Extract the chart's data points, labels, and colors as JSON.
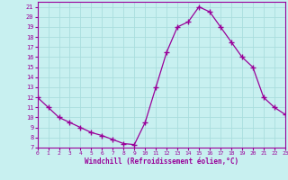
{
  "hours": [
    0,
    1,
    2,
    3,
    4,
    5,
    6,
    7,
    8,
    9,
    10,
    11,
    12,
    13,
    14,
    15,
    16,
    17,
    18,
    19,
    20,
    21,
    22,
    23
  ],
  "values": [
    12,
    11,
    10,
    9.5,
    9,
    8.5,
    8.2,
    7.8,
    7.4,
    7.3,
    9.5,
    13,
    16.5,
    19,
    19.5,
    21,
    20.5,
    19,
    17.5,
    16,
    15,
    12,
    11,
    10.3
  ],
  "line_color": "#990099",
  "marker": "+",
  "marker_size": 4,
  "bg_color": "#c8f0f0",
  "grid_color": "#aadddd",
  "xlabel": "Windchill (Refroidissement éolien,°C)",
  "xlabel_color": "#990099",
  "tick_color": "#990099",
  "spine_color": "#990099",
  "ylim": [
    7,
    21.5
  ],
  "xlim": [
    0,
    23
  ],
  "yticks": [
    7,
    8,
    9,
    10,
    11,
    12,
    13,
    14,
    15,
    16,
    17,
    18,
    19,
    20,
    21
  ],
  "xticks": [
    0,
    1,
    2,
    3,
    4,
    5,
    6,
    7,
    8,
    9,
    10,
    11,
    12,
    13,
    14,
    15,
    16,
    17,
    18,
    19,
    20,
    21,
    22,
    23
  ]
}
